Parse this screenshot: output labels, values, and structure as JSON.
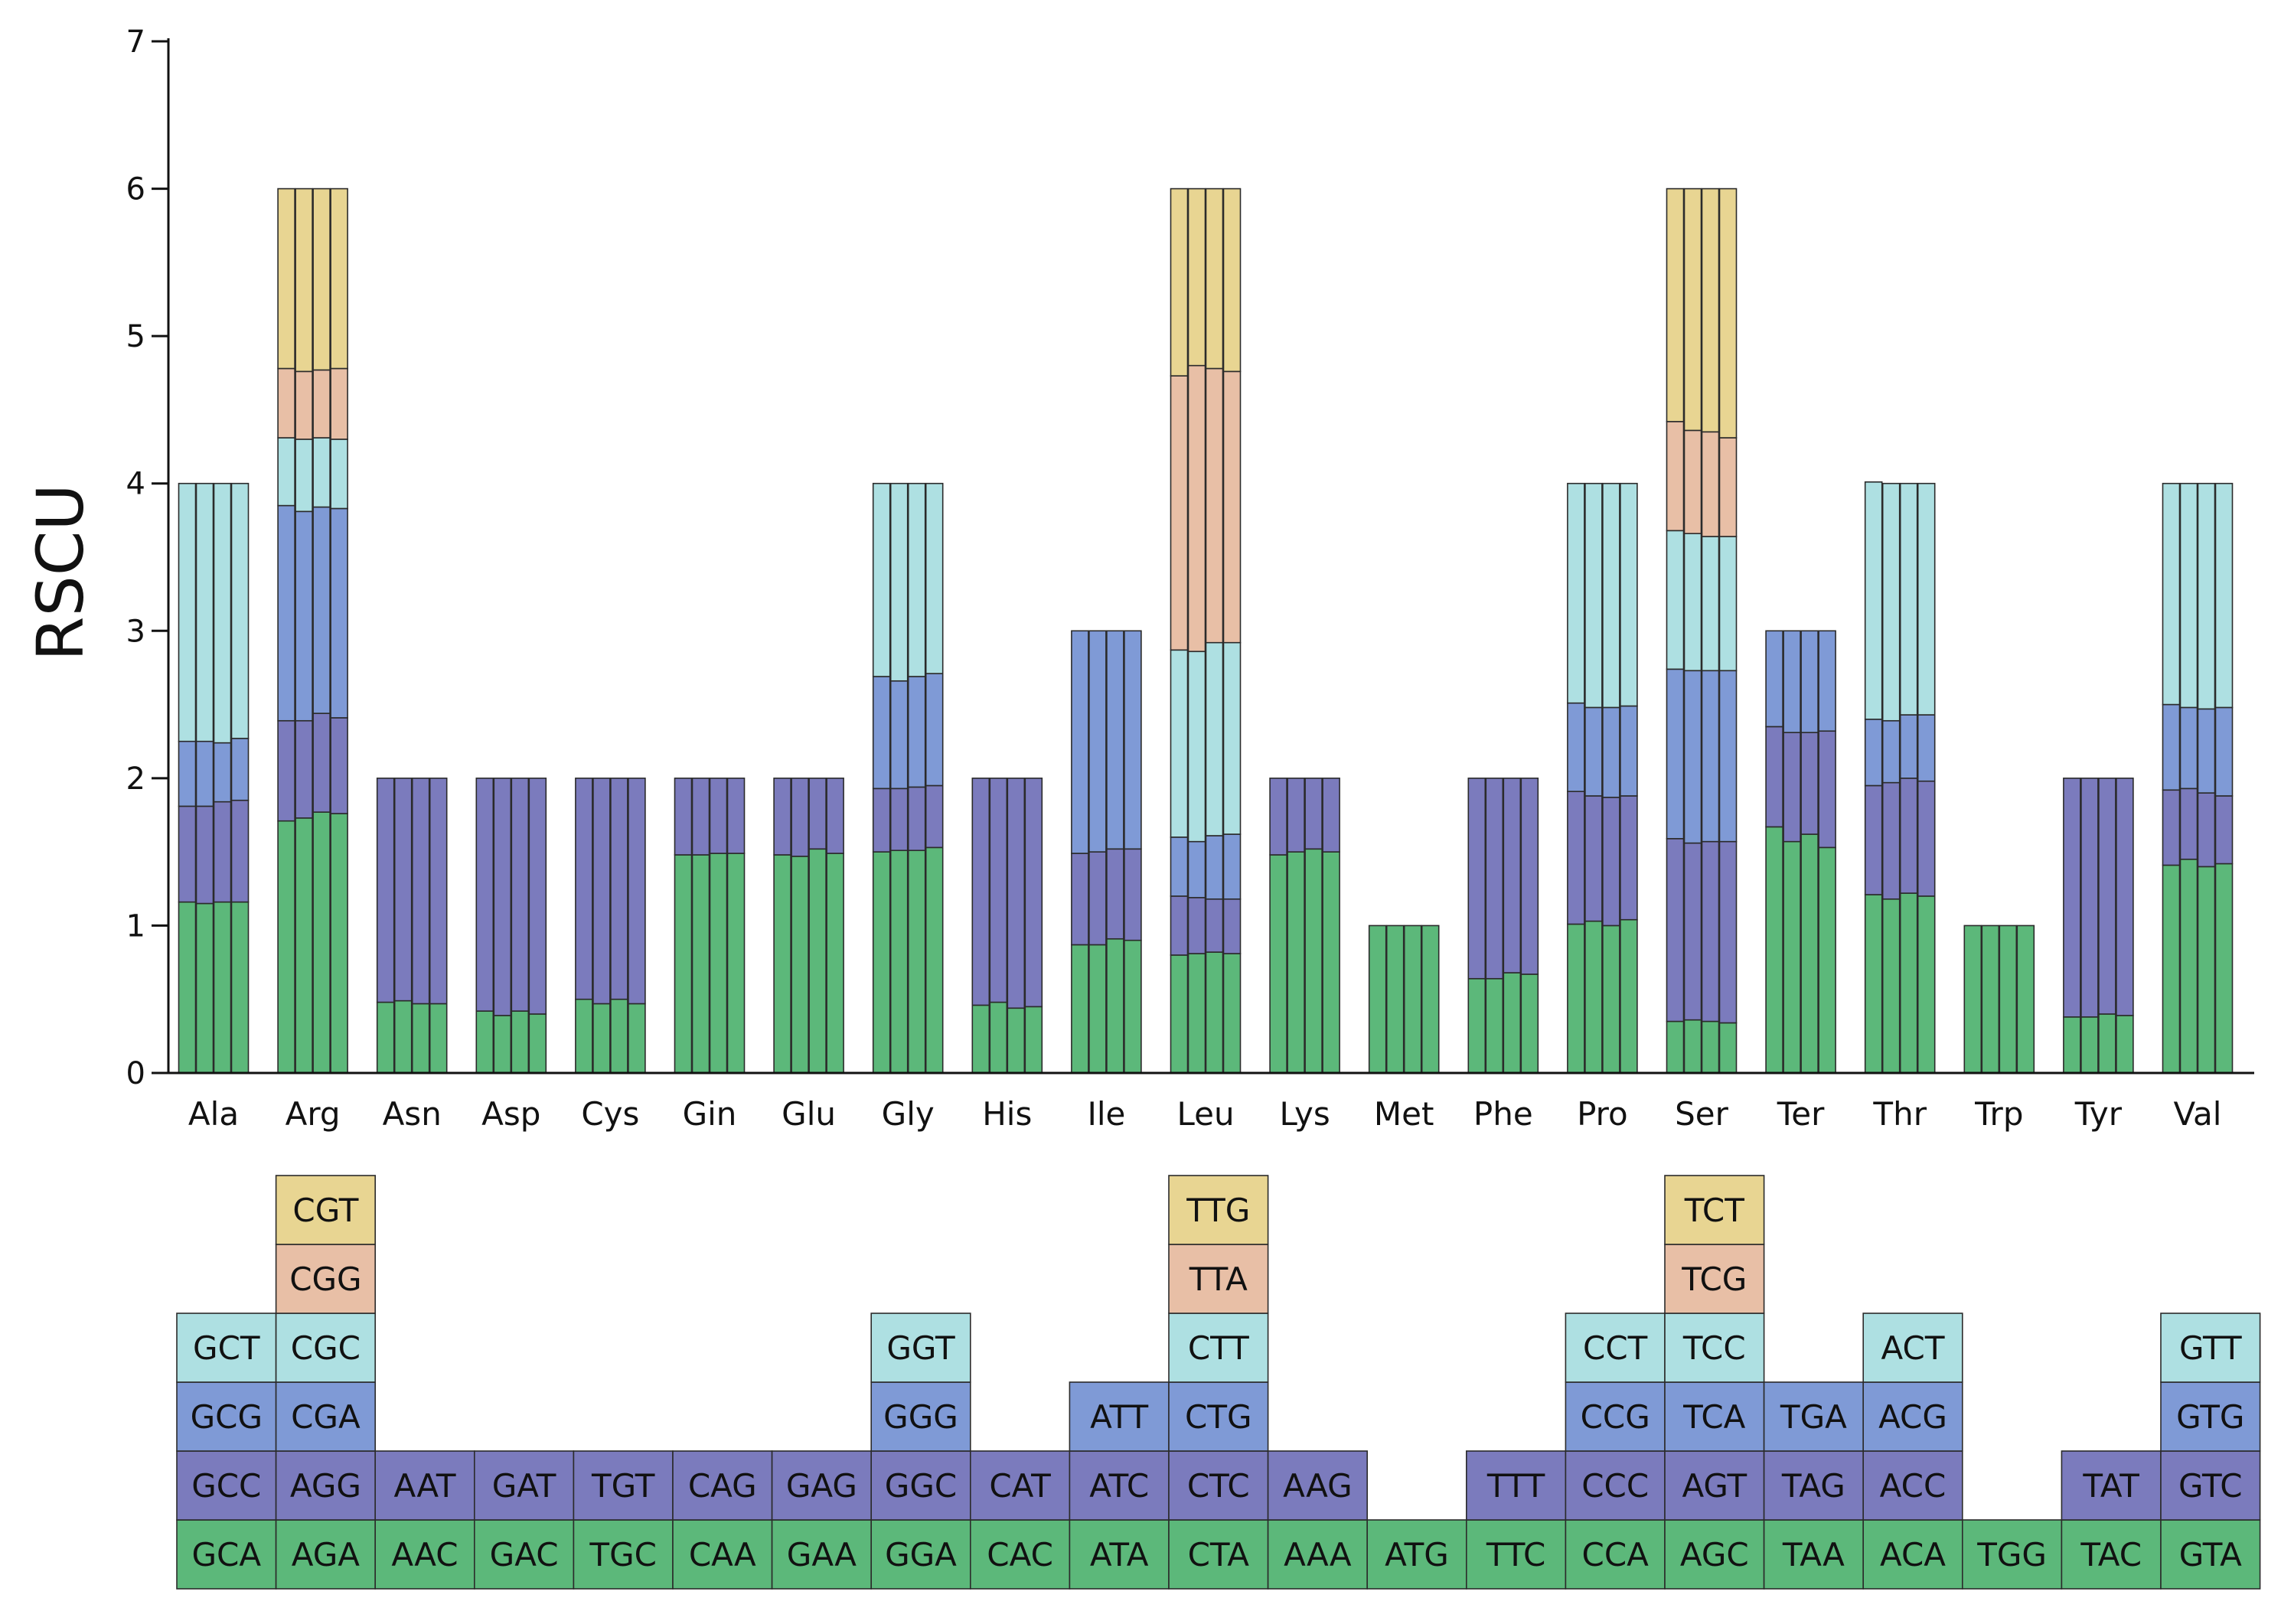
{
  "chart_data": {
    "type": "bar",
    "subtype": "stacked",
    "ylabel": "RSCU",
    "ylim": [
      0,
      7
    ],
    "yticks": [
      0,
      1,
      2,
      3,
      4,
      5,
      6,
      7
    ],
    "grid": false,
    "legend": "codon table below x-axis",
    "bars_per_category": 4,
    "layer_colors": [
      "#5cb87a",
      "#7b7bbd",
      "#7f9ad6",
      "#aee0e2",
      "#e8bfa6",
      "#e8d592"
    ],
    "categories": [
      {
        "name": "Ala",
        "codons": [
          "GCA",
          "GCC",
          "GCG",
          "GCT"
        ],
        "bars": [
          [
            1.16,
            0.65,
            0.44,
            1.75
          ],
          [
            1.15,
            0.66,
            0.44,
            1.75
          ],
          [
            1.16,
            0.68,
            0.4,
            1.76
          ],
          [
            1.16,
            0.69,
            0.42,
            1.73
          ]
        ]
      },
      {
        "name": "Arg",
        "codons": [
          "AGA",
          "AGG",
          "CGA",
          "CGC",
          "CGG",
          "CGT"
        ],
        "bars": [
          [
            1.71,
            0.68,
            1.46,
            0.46,
            0.47,
            1.22
          ],
          [
            1.73,
            0.66,
            1.42,
            0.49,
            0.46,
            1.24
          ],
          [
            1.77,
            0.67,
            1.4,
            0.47,
            0.46,
            1.23
          ],
          [
            1.76,
            0.65,
            1.42,
            0.47,
            0.48,
            1.22
          ]
        ]
      },
      {
        "name": "Asn",
        "codons": [
          "AAC",
          "AAT"
        ],
        "bars": [
          [
            0.48,
            1.52
          ],
          [
            0.49,
            1.51
          ],
          [
            0.47,
            1.53
          ],
          [
            0.47,
            1.53
          ]
        ]
      },
      {
        "name": "Asp",
        "codons": [
          "GAC",
          "GAT"
        ],
        "bars": [
          [
            0.42,
            1.58
          ],
          [
            0.39,
            1.61
          ],
          [
            0.42,
            1.58
          ],
          [
            0.4,
            1.6
          ]
        ]
      },
      {
        "name": "Cys",
        "codons": [
          "TGC",
          "TGT"
        ],
        "bars": [
          [
            0.5,
            1.5
          ],
          [
            0.47,
            1.53
          ],
          [
            0.5,
            1.5
          ],
          [
            0.47,
            1.53
          ]
        ]
      },
      {
        "name": "Gin",
        "codons": [
          "CAA",
          "CAG"
        ],
        "bars": [
          [
            1.48,
            0.52
          ],
          [
            1.48,
            0.52
          ],
          [
            1.49,
            0.51
          ],
          [
            1.49,
            0.51
          ]
        ]
      },
      {
        "name": "Glu",
        "codons": [
          "GAA",
          "GAG"
        ],
        "bars": [
          [
            1.48,
            0.52
          ],
          [
            1.47,
            0.53
          ],
          [
            1.52,
            0.48
          ],
          [
            1.49,
            0.51
          ]
        ]
      },
      {
        "name": "Gly",
        "codons": [
          "GGA",
          "GGC",
          "GGG",
          "GGT"
        ],
        "bars": [
          [
            1.5,
            0.43,
            0.76,
            1.31
          ],
          [
            1.51,
            0.42,
            0.73,
            1.34
          ],
          [
            1.51,
            0.43,
            0.75,
            1.31
          ],
          [
            1.53,
            0.42,
            0.76,
            1.29
          ]
        ]
      },
      {
        "name": "His",
        "codons": [
          "CAC",
          "CAT"
        ],
        "bars": [
          [
            0.46,
            1.54
          ],
          [
            0.48,
            1.52
          ],
          [
            0.44,
            1.56
          ],
          [
            0.45,
            1.55
          ]
        ]
      },
      {
        "name": "Ile",
        "codons": [
          "ATA",
          "ATC",
          "ATT"
        ],
        "bars": [
          [
            0.87,
            0.62,
            1.51
          ],
          [
            0.87,
            0.63,
            1.5
          ],
          [
            0.91,
            0.61,
            1.48
          ],
          [
            0.9,
            0.62,
            1.48
          ]
        ]
      },
      {
        "name": "Leu",
        "codons": [
          "CTA",
          "CTC",
          "CTG",
          "CTT",
          "TTA",
          "TTG"
        ],
        "bars": [
          [
            0.8,
            0.4,
            0.4,
            1.27,
            1.86,
            1.27
          ],
          [
            0.81,
            0.38,
            0.38,
            1.29,
            1.94,
            1.2
          ],
          [
            0.82,
            0.36,
            0.43,
            1.31,
            1.86,
            1.22
          ],
          [
            0.81,
            0.37,
            0.44,
            1.3,
            1.84,
            1.24
          ]
        ]
      },
      {
        "name": "Lys",
        "codons": [
          "AAA",
          "AAG"
        ],
        "bars": [
          [
            1.48,
            0.52
          ],
          [
            1.5,
            0.5
          ],
          [
            1.52,
            0.48
          ],
          [
            1.5,
            0.5
          ]
        ]
      },
      {
        "name": "Met",
        "codons": [
          "ATG"
        ],
        "bars": [
          [
            1.0
          ],
          [
            1.0
          ],
          [
            1.0
          ],
          [
            1.0
          ]
        ]
      },
      {
        "name": "Phe",
        "codons": [
          "TTC",
          "TTT"
        ],
        "bars": [
          [
            0.64,
            1.36
          ],
          [
            0.64,
            1.36
          ],
          [
            0.68,
            1.32
          ],
          [
            0.67,
            1.33
          ]
        ]
      },
      {
        "name": "Pro",
        "codons": [
          "CCA",
          "CCC",
          "CCG",
          "CCT"
        ],
        "bars": [
          [
            1.01,
            0.9,
            0.6,
            1.49
          ],
          [
            1.03,
            0.85,
            0.6,
            1.52
          ],
          [
            1.0,
            0.87,
            0.61,
            1.52
          ],
          [
            1.04,
            0.84,
            0.61,
            1.51
          ]
        ]
      },
      {
        "name": "Ser",
        "codons": [
          "AGC",
          "AGT",
          "TCA",
          "TCC",
          "TCG",
          "TCT"
        ],
        "bars": [
          [
            0.35,
            1.24,
            1.15,
            0.94,
            0.74,
            1.58
          ],
          [
            0.36,
            1.2,
            1.17,
            0.93,
            0.7,
            1.64
          ],
          [
            0.35,
            1.22,
            1.16,
            0.91,
            0.71,
            1.65
          ],
          [
            0.34,
            1.23,
            1.16,
            0.91,
            0.67,
            1.69
          ]
        ]
      },
      {
        "name": "Ter",
        "codons": [
          "TAA",
          "TAG",
          "TGA"
        ],
        "bars": [
          [
            1.67,
            0.68,
            0.65
          ],
          [
            1.57,
            0.74,
            0.69
          ],
          [
            1.62,
            0.69,
            0.69
          ],
          [
            1.53,
            0.79,
            0.68
          ]
        ]
      },
      {
        "name": "Thr",
        "codons": [
          "ACA",
          "ACC",
          "ACG",
          "ACT"
        ],
        "bars": [
          [
            1.21,
            0.74,
            0.45,
            1.61
          ],
          [
            1.18,
            0.79,
            0.42,
            1.61
          ],
          [
            1.22,
            0.78,
            0.43,
            1.57
          ],
          [
            1.2,
            0.78,
            0.45,
            1.57
          ]
        ]
      },
      {
        "name": "Trp",
        "codons": [
          "TGG"
        ],
        "bars": [
          [
            1.0
          ],
          [
            1.0
          ],
          [
            1.0
          ],
          [
            1.0
          ]
        ]
      },
      {
        "name": "Tyr",
        "codons": [
          "TAC",
          "TAT"
        ],
        "bars": [
          [
            0.38,
            1.62
          ],
          [
            0.38,
            1.62
          ],
          [
            0.4,
            1.6
          ],
          [
            0.39,
            1.61
          ]
        ]
      },
      {
        "name": "Val",
        "codons": [
          "GTA",
          "GTC",
          "GTG",
          "GTT"
        ],
        "bars": [
          [
            1.41,
            0.51,
            0.58,
            1.5
          ],
          [
            1.45,
            0.48,
            0.55,
            1.52
          ],
          [
            1.4,
            0.5,
            0.57,
            1.53
          ],
          [
            1.42,
            0.46,
            0.6,
            1.52
          ]
        ]
      }
    ]
  }
}
